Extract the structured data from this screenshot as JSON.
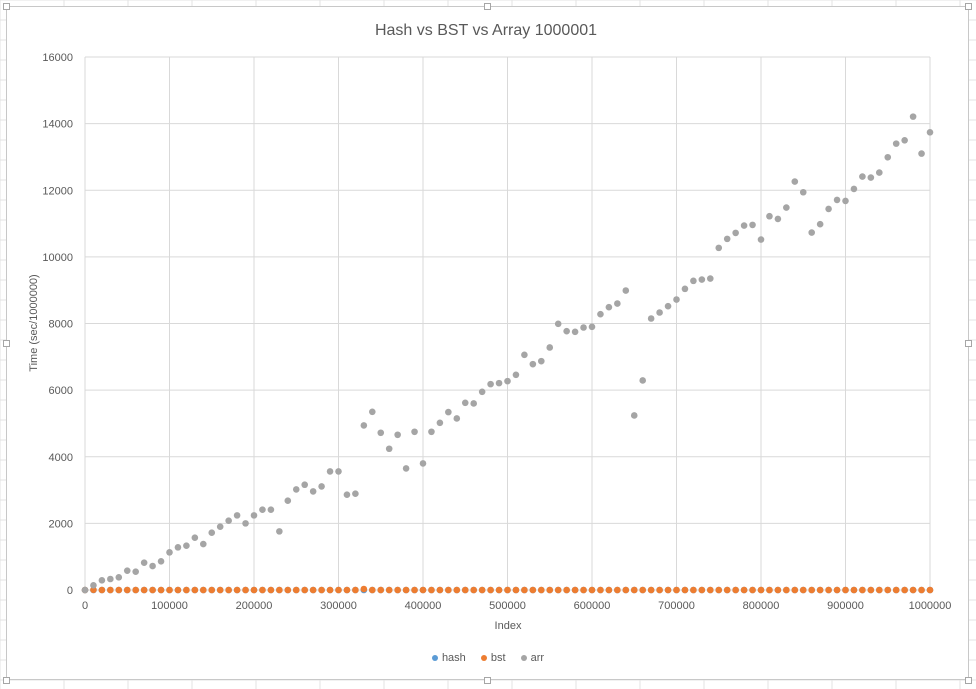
{
  "chart_data": {
    "type": "scatter",
    "title": "Hash vs BST vs Array 1000001",
    "xlabel": "Index",
    "ylabel": "Time (sec/1000000)",
    "xlim": [
      0,
      1000000
    ],
    "ylim": [
      0,
      16000
    ],
    "xticks": [
      0,
      100000,
      200000,
      300000,
      400000,
      500000,
      600000,
      700000,
      800000,
      900000,
      1000000
    ],
    "yticks": [
      0,
      2000,
      4000,
      6000,
      8000,
      10000,
      12000,
      14000,
      16000
    ],
    "grid": true,
    "legend": "bottom",
    "x": [
      0,
      10000,
      20000,
      30000,
      40000,
      50000,
      60000,
      70000,
      80000,
      90000,
      100000,
      110000,
      120000,
      130000,
      140000,
      150000,
      160000,
      170000,
      180000,
      190000,
      200000,
      210000,
      220000,
      230000,
      240000,
      250000,
      260000,
      270000,
      280000,
      290000,
      300000,
      310000,
      320000,
      330000,
      340000,
      350000,
      360000,
      370000,
      380000,
      390000,
      400000,
      410000,
      420000,
      430000,
      440000,
      450000,
      460000,
      470000,
      480000,
      490000,
      500000,
      510000,
      520000,
      530000,
      540000,
      550000,
      560000,
      570000,
      580000,
      590000,
      600000,
      610000,
      620000,
      630000,
      640000,
      650000,
      660000,
      670000,
      680000,
      690000,
      700000,
      710000,
      720000,
      730000,
      740000,
      750000,
      760000,
      770000,
      780000,
      790000,
      800000,
      810000,
      820000,
      830000,
      840000,
      850000,
      860000,
      870000,
      880000,
      890000,
      900000,
      910000,
      920000,
      930000,
      940000,
      950000,
      960000,
      970000,
      980000,
      990000,
      1000000
    ],
    "series": [
      {
        "name": "hash",
        "color": "#5b9bd5",
        "values": [
          0,
          0,
          0,
          0,
          0,
          0,
          0,
          0,
          0,
          0,
          0,
          0,
          0,
          0,
          0,
          0,
          0,
          0,
          0,
          0,
          0,
          0,
          0,
          0,
          0,
          0,
          0,
          0,
          0,
          0,
          0,
          0,
          0,
          0,
          0,
          0,
          0,
          0,
          0,
          0,
          0,
          0,
          0,
          0,
          0,
          0,
          0,
          0,
          0,
          0,
          0,
          0,
          0,
          0,
          0,
          0,
          0,
          0,
          0,
          0,
          0,
          0,
          0,
          0,
          0,
          0,
          0,
          0,
          0,
          0,
          0,
          0,
          0,
          0,
          0,
          0,
          0,
          0,
          0,
          0,
          0,
          0,
          0,
          0,
          0,
          0,
          0,
          0,
          0,
          0,
          0,
          0,
          0,
          0,
          0,
          0,
          0,
          0,
          0,
          0,
          0
        ]
      },
      {
        "name": "bst",
        "color": "#ed7d31",
        "values": [
          0,
          5,
          0,
          0,
          0,
          0,
          0,
          0,
          0,
          0,
          0,
          0,
          0,
          0,
          0,
          0,
          0,
          0,
          0,
          0,
          0,
          0,
          0,
          0,
          0,
          0,
          0,
          0,
          0,
          0,
          0,
          0,
          0,
          30,
          0,
          0,
          0,
          0,
          0,
          0,
          0,
          0,
          0,
          0,
          0,
          0,
          0,
          0,
          0,
          0,
          0,
          0,
          0,
          0,
          0,
          0,
          0,
          0,
          0,
          0,
          0,
          0,
          0,
          0,
          0,
          0,
          0,
          0,
          0,
          0,
          0,
          0,
          0,
          0,
          0,
          0,
          0,
          0,
          0,
          0,
          0,
          0,
          0,
          0,
          0,
          0,
          0,
          0,
          0,
          0,
          0,
          0,
          0,
          0,
          0,
          0,
          0,
          0,
          0,
          0,
          0
        ]
      },
      {
        "name": "arr",
        "color": "#a5a5a5",
        "values": [
          0,
          140,
          290,
          330,
          380,
          580,
          550,
          820,
          720,
          860,
          1130,
          1280,
          1330,
          1570,
          1380,
          1720,
          1900,
          2080,
          2240,
          2000,
          2240,
          2410,
          2410,
          1760,
          2680,
          3020,
          3160,
          2960,
          3110,
          3560,
          3560,
          2860,
          2890,
          4940,
          5350,
          4720,
          4240,
          4660,
          3650,
          4750,
          3800,
          4750,
          5020,
          5340,
          5150,
          5620,
          5600,
          5950,
          6180,
          6210,
          6270,
          6460,
          7060,
          6780,
          6870,
          7280,
          7990,
          7770,
          7750,
          7880,
          7900,
          8280,
          8490,
          8600,
          8990,
          5240,
          6290,
          8150,
          8330,
          8520,
          8720,
          9040,
          9280,
          9320,
          9350,
          10270,
          10540,
          10720,
          10940,
          10960,
          10520,
          11220,
          11140,
          11480,
          12260,
          11940,
          10730,
          10980,
          11440,
          11710,
          11680,
          12040,
          12410,
          12380,
          12530,
          12990,
          13400,
          13500,
          14210,
          13100,
          13740
        ]
      }
    ]
  }
}
